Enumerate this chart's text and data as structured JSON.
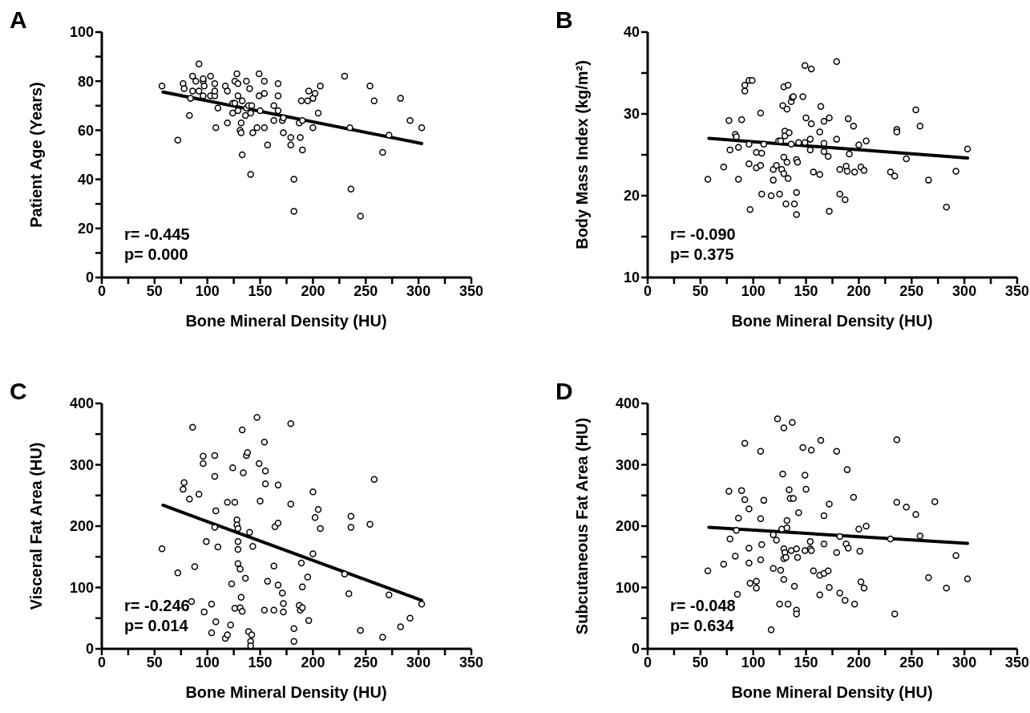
{
  "chart_data": [
    {
      "type": "scatter",
      "title": "A",
      "xlabel": "Bone Mineral Density (HU)",
      "ylabel": "Patient Age (Years)",
      "marker": "circle",
      "line_style": "solid",
      "xlim": [
        0,
        350
      ],
      "xticks": [
        0,
        {
          "value": 25,
          "label": null
        },
        50,
        {
          "value": 75,
          "label": null
        },
        100,
        {
          "value": 125,
          "label": null
        },
        150,
        {
          "value": 175,
          "label": null
        },
        200,
        {
          "value": 225,
          "label": null
        },
        250,
        {
          "value": 275,
          "label": null
        },
        300,
        {
          "value": 325,
          "label": null
        },
        350
      ],
      "ylim": [
        0,
        100
      ],
      "yticks": [
        0,
        {
          "value": 10,
          "label": null
        },
        20,
        {
          "value": 30,
          "label": null
        },
        40,
        {
          "value": 50,
          "label": null
        },
        60,
        {
          "value": 70,
          "label": null
        },
        80,
        {
          "value": 90,
          "label": null
        },
        100
      ],
      "annotations": [
        "r= -0.445",
        "p= 0.000"
      ],
      "series": [
        {
          "type": "scatter",
          "color": "#000000",
          "x": [
            57,
            72,
            77,
            78,
            84,
            83,
            86,
            86,
            89,
            92,
            92,
            96,
            96,
            97,
            96,
            103,
            103,
            107,
            107,
            107,
            108,
            110,
            117,
            119,
            119,
            124,
            124,
            126,
            126,
            128,
            129,
            129,
            129,
            132,
            131,
            132,
            133,
            133,
            136,
            137,
            137,
            139,
            140,
            141,
            141,
            142,
            143,
            147,
            149,
            149,
            150,
            154,
            154,
            154,
            157,
            163,
            163,
            167,
            167,
            167,
            171,
            172,
            172,
            179,
            179,
            182,
            182,
            187,
            188,
            189,
            190,
            190,
            195,
            196,
            200,
            200,
            202,
            205,
            207,
            230,
            235,
            236,
            245,
            254,
            258,
            266,
            272,
            283,
            292,
            303
          ],
          "values": [
            78,
            56,
            79,
            77,
            73,
            66,
            76,
            82,
            80,
            87,
            76,
            80,
            81,
            78,
            74,
            82,
            74,
            74,
            79,
            76,
            61,
            69,
            78,
            76,
            63,
            67,
            71,
            80,
            71,
            83,
            79,
            74,
            68,
            63,
            60,
            59,
            50,
            72,
            66,
            80,
            69,
            70,
            77,
            42,
            67,
            70,
            59,
            61,
            74,
            83,
            68,
            80,
            75,
            61,
            54,
            70,
            64,
            79,
            74,
            68,
            64,
            65,
            59,
            57,
            54,
            40,
            27,
            63,
            57,
            72,
            64,
            52,
            72,
            76,
            73,
            61,
            75,
            67,
            78,
            82,
            61,
            36,
            25,
            78,
            72,
            51,
            58,
            73,
            64,
            61
          ]
        },
        {
          "type": "line",
          "color": "#000000",
          "marker": "none",
          "x": [
            58,
            303
          ],
          "values": [
            75.6,
            54.6
          ]
        }
      ]
    },
    {
      "type": "scatter",
      "title": "B",
      "xlabel": "Bone Mineral Density (HU)",
      "ylabel": "Body Mass Index (kg/m²)",
      "marker": "circle",
      "line_style": "solid",
      "xlim": [
        0,
        350
      ],
      "xticks": [
        0,
        {
          "value": 25,
          "label": null
        },
        50,
        {
          "value": 75,
          "label": null
        },
        100,
        {
          "value": 125,
          "label": null
        },
        150,
        {
          "value": 175,
          "label": null
        },
        200,
        {
          "value": 225,
          "label": null
        },
        250,
        {
          "value": 275,
          "label": null
        },
        300,
        {
          "value": 325,
          "label": null
        },
        350
      ],
      "ylim": [
        10,
        40
      ],
      "yticks": [
        10,
        {
          "value": 15,
          "label": null
        },
        20,
        {
          "value": 25,
          "label": null
        },
        30,
        {
          "value": 35,
          "label": null
        },
        40
      ],
      "annotations": [
        "r= -0.090",
        "p= 0.375"
      ],
      "series": [
        {
          "type": "scatter",
          "color": "#000000",
          "x": [
            57,
            72,
            77,
            78,
            83,
            84,
            86,
            86,
            89,
            92,
            92,
            96,
            99,
            96,
            96,
            97,
            103,
            103,
            107,
            107,
            108,
            108,
            110,
            117,
            119,
            119,
            122,
            124,
            125,
            126,
            127,
            128,
            129,
            129,
            129,
            130,
            130,
            132,
            132,
            133,
            133,
            134,
            131,
            136,
            137,
            138,
            136,
            139,
            141,
            141,
            141,
            142,
            143,
            147,
            149,
            149,
            150,
            154,
            155,
            154,
            155,
            157,
            163,
            163,
            164,
            167,
            167,
            167,
            171,
            172,
            172,
            179,
            179,
            182,
            182,
            187,
            188,
            189,
            190,
            191,
            195,
            196,
            200,
            202,
            205,
            207,
            230,
            234,
            236,
            236,
            245,
            254,
            258,
            266,
            283,
            292,
            303
          ],
          "values": [
            22.0,
            23.5,
            29.2,
            25.6,
            27.5,
            27.2,
            22.0,
            25.9,
            29.3,
            32.8,
            33.5,
            34.1,
            34.1,
            26.3,
            23.9,
            18.3,
            25.3,
            23.4,
            30.1,
            23.7,
            25.2,
            20.2,
            26.3,
            20.0,
            23.2,
            21.9,
            23.7,
            26.7,
            20.2,
            26.7,
            23.2,
            31.0,
            33.3,
            22.7,
            24.7,
            27.9,
            27.3,
            24.1,
            30.6,
            22.1,
            33.5,
            27.7,
            19.0,
            31.5,
            32.0,
            32.1,
            26.3,
            19.0,
            17.7,
            20.4,
            24.4,
            24.1,
            26.5,
            32.1,
            35.9,
            26.5,
            29.5,
            25.6,
            28.8,
            26.9,
            35.5,
            22.9,
            27.8,
            22.6,
            30.9,
            29.1,
            26.4,
            25.4,
            24.8,
            29.5,
            18.1,
            36.4,
            26.9,
            23.2,
            20.2,
            19.5,
            23.6,
            23.0,
            29.4,
            25.1,
            28.5,
            22.9,
            26.2,
            23.5,
            23.1,
            26.7,
            22.9,
            22.4,
            28.1,
            27.8,
            24.5,
            30.5,
            28.5,
            21.9,
            18.6,
            23.0,
            25.7
          ]
        },
        {
          "type": "line",
          "color": "#000000",
          "marker": "none",
          "x": [
            58,
            303
          ],
          "values": [
            27.0,
            24.6
          ]
        }
      ]
    },
    {
      "type": "scatter",
      "title": "C",
      "xlabel": "Bone Mineral Density (HU)",
      "ylabel": "Visceral Fat Area (HU)",
      "marker": "circle",
      "line_style": "solid",
      "xlim": [
        0,
        350
      ],
      "xticks": [
        0,
        {
          "value": 25,
          "label": null
        },
        50,
        {
          "value": 75,
          "label": null
        },
        100,
        {
          "value": 125,
          "label": null
        },
        150,
        {
          "value": 175,
          "label": null
        },
        200,
        {
          "value": 225,
          "label": null
        },
        250,
        {
          "value": 275,
          "label": null
        },
        300,
        {
          "value": 325,
          "label": null
        },
        350
      ],
      "ylim": [
        0,
        400
      ],
      "yticks": [
        0,
        {
          "value": 50,
          "label": null
        },
        100,
        {
          "value": 150,
          "label": null
        },
        200,
        {
          "value": 250,
          "label": null
        },
        300,
        {
          "value": 350,
          "label": null
        },
        400
      ],
      "annotations": [
        "r= -0.246",
        "p= 0.014"
      ],
      "series": [
        {
          "type": "scatter",
          "color": "#000000",
          "x": [
            57,
            72,
            77,
            78,
            83,
            85,
            86,
            88,
            92,
            96,
            96,
            97,
            99,
            104,
            104,
            107,
            107,
            107,
            108,
            108,
            110,
            117,
            119,
            119,
            122,
            123,
            124,
            126,
            126,
            128,
            128,
            129,
            129,
            129,
            129,
            131,
            131,
            132,
            133,
            133,
            134,
            136,
            137,
            138,
            139,
            140,
            141,
            142,
            141,
            143,
            147,
            149,
            150,
            154,
            154,
            155,
            155,
            157,
            163,
            163,
            164,
            167,
            167,
            167,
            171,
            172,
            172,
            179,
            179,
            182,
            182,
            187,
            188,
            189,
            190,
            190,
            195,
            196,
            200,
            200,
            202,
            205,
            207,
            230,
            234,
            236,
            236,
            245,
            254,
            258,
            266,
            272,
            283,
            292,
            303
          ],
          "values": [
            163,
            124,
            260,
            271,
            244,
            77,
            361,
            134,
            252,
            314,
            302,
            60,
            175,
            73,
            26,
            315,
            281,
            198,
            225,
            44,
            166,
            17,
            23,
            239,
            39,
            106,
            295,
            239,
            66,
            210,
            202,
            196,
            175,
            162,
            139,
            130,
            67,
            84,
            61,
            357,
            287,
            115,
            315,
            320,
            28,
            190,
            12,
            23,
            5,
            167,
            377,
            302,
            241,
            63,
            337,
            290,
            269,
            110,
            135,
            63,
            199,
            267,
            205,
            104,
            91,
            74,
            60,
            367,
            236,
            33,
            12,
            71,
            63,
            140,
            67,
            101,
            117,
            46,
            256,
            155,
            214,
            227,
            196,
            122,
            90,
            216,
            198,
            30,
            203,
            276,
            19,
            88,
            36,
            50,
            73
          ]
        },
        {
          "type": "line",
          "color": "#000000",
          "marker": "none",
          "x": [
            58,
            303
          ],
          "values": [
            234,
            79
          ]
        }
      ]
    },
    {
      "type": "scatter",
      "title": "D",
      "xlabel": "Bone Mineral Density (HU)",
      "ylabel": "Subcutaneous Fat Area (HU)",
      "marker": "circle",
      "line_style": "solid",
      "xlim": [
        0,
        350
      ],
      "xticks": [
        0,
        {
          "value": 25,
          "label": null
        },
        50,
        {
          "value": 75,
          "label": null
        },
        100,
        {
          "value": 125,
          "label": null
        },
        150,
        {
          "value": 175,
          "label": null
        },
        200,
        {
          "value": 225,
          "label": null
        },
        250,
        {
          "value": 275,
          "label": null
        },
        300,
        {
          "value": 325,
          "label": null
        },
        350
      ],
      "ylim": [
        0,
        400
      ],
      "yticks": [
        0,
        {
          "value": 50,
          "label": null
        },
        100,
        {
          "value": 150,
          "label": null
        },
        200,
        {
          "value": 250,
          "label": null
        },
        300,
        {
          "value": 350,
          "label": null
        },
        400
      ],
      "annotations": [
        "r= -0.048",
        "p= 0.634"
      ],
      "series": [
        {
          "type": "scatter",
          "color": "#000000",
          "x": [
            57,
            72,
            77,
            78,
            83,
            84,
            85,
            86,
            89,
            92,
            92,
            96,
            96,
            96,
            97,
            103,
            103,
            107,
            107,
            107,
            108,
            110,
            117,
            119,
            119,
            122,
            123,
            125,
            126,
            127,
            128,
            129,
            129,
            129,
            129,
            130,
            131,
            132,
            132,
            133,
            134,
            136,
            135,
            137,
            138,
            139,
            141,
            141,
            141,
            142,
            143,
            147,
            149,
            149,
            150,
            154,
            154,
            155,
            155,
            157,
            163,
            163,
            164,
            167,
            167,
            167,
            171,
            172,
            172,
            179,
            179,
            182,
            182,
            187,
            188,
            189,
            190,
            195,
            196,
            200,
            201,
            202,
            205,
            207,
            230,
            234,
            236,
            236,
            245,
            254,
            258,
            266,
            272,
            283,
            292,
            303
          ],
          "values": [
            127,
            138,
            257,
            179,
            151,
            193,
            89,
            213,
            258,
            335,
            243,
            228,
            164,
            140,
            107,
            110,
            99,
            322,
            212,
            145,
            170,
            242,
            31,
            131,
            186,
            177,
            375,
            73,
            128,
            195,
            285,
            360,
            163,
            113,
            147,
            157,
            149,
            209,
            197,
            73,
            259,
            160,
            245,
            369,
            245,
            102,
            163,
            63,
            57,
            149,
            222,
            328,
            283,
            160,
            260,
            175,
            163,
            160,
            324,
            127,
            88,
            120,
            340,
            217,
            171,
            123,
            127,
            236,
            100,
            322,
            157,
            91,
            183,
            79,
            171,
            292,
            164,
            247,
            73,
            195,
            159,
            109,
            99,
            200,
            179,
            57,
            341,
            239,
            231,
            219,
            184,
            116,
            240,
            99,
            152,
            114
          ]
        },
        {
          "type": "line",
          "color": "#000000",
          "marker": "none",
          "x": [
            58,
            303
          ],
          "values": [
            198,
            172
          ]
        }
      ]
    }
  ]
}
